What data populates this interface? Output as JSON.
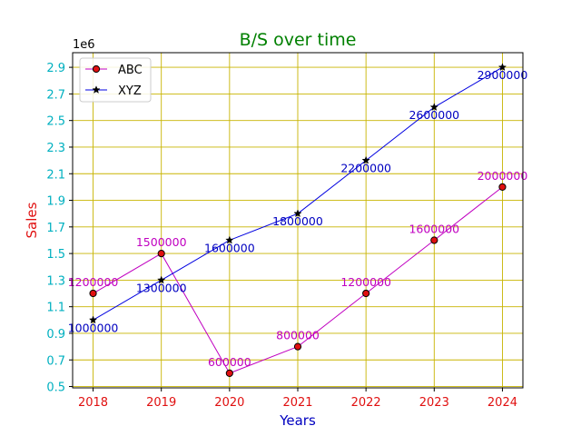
{
  "chart_data": {
    "type": "line",
    "title": "B/S over time",
    "xlabel": "Years",
    "ylabel": "Sales",
    "y_offset_label": "1e6",
    "categories": [
      "2018",
      "2019",
      "2020",
      "2021",
      "2022",
      "2023",
      "2024"
    ],
    "xlim": [
      2017.7,
      2024.3
    ],
    "ylim": [
      490000,
      3010000
    ],
    "yticks": [
      500000,
      700000,
      900000,
      1100000,
      1300000,
      1500000,
      1700000,
      1900000,
      2100000,
      2300000,
      2500000,
      2700000,
      2900000
    ],
    "ytick_labels": [
      "0.5",
      "0.7",
      "0.9",
      "1.1",
      "1.3",
      "1.5",
      "1.7",
      "1.9",
      "2.1",
      "2.3",
      "2.5",
      "2.7",
      "2.9"
    ],
    "grid": true,
    "legend_position": "top-left",
    "series": [
      {
        "name": "ABC",
        "x": [
          2018,
          2019,
          2020,
          2021,
          2022,
          2023,
          2024
        ],
        "values": [
          1200000,
          1500000,
          600000,
          800000,
          1200000,
          1600000,
          2000000
        ],
        "data_labels": [
          "1200000",
          "1500000",
          "600000",
          "800000",
          "1200000",
          "1600000",
          "2000000"
        ],
        "label_position": "above",
        "marker": "circle",
        "line_color": "#c000c0",
        "marker_color": "#e01010",
        "label_color": "#c000c0"
      },
      {
        "name": "XYZ",
        "x": [
          2018,
          2019,
          2020,
          2021,
          2022,
          2023,
          2024
        ],
        "values": [
          1000000,
          1300000,
          1600000,
          1800000,
          2200000,
          2600000,
          2900000
        ],
        "data_labels": [
          "1000000",
          "1300000",
          "1600000",
          "1800000",
          "2200000",
          "2600000",
          "2900000"
        ],
        "label_position": "below",
        "marker": "star",
        "line_color": "#0000e0",
        "marker_color": "#000000",
        "label_color": "#0000c0"
      }
    ],
    "colors": {
      "title": "#008000",
      "xlabel": "#0000c0",
      "ylabel": "#e01010",
      "xtick": "#e01010",
      "ytick": "#00b0c0",
      "grid": "#c8b400"
    }
  }
}
